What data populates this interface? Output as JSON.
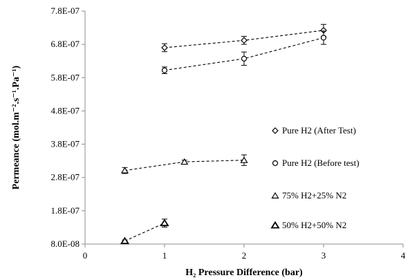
{
  "chart_data": {
    "type": "scatter",
    "xlabel": "H₂ Pressure Difference (bar)",
    "ylabel": "Permeance (mol.m⁻².s⁻¹.Pa⁻¹)",
    "xlim": [
      0,
      4
    ],
    "ylim": [
      8e-08,
      7.8e-07
    ],
    "x_ticks": [
      0,
      1,
      2,
      3,
      4
    ],
    "y_ticks": [
      8e-08,
      1.8e-07,
      2.8e-07,
      3.8e-07,
      4.8e-07,
      5.8e-07,
      6.8e-07,
      7.8e-07
    ],
    "y_tick_labels": [
      "8.0E-08",
      "1.8E-07",
      "2.8E-07",
      "3.8E-07",
      "4.8E-07",
      "5.8E-07",
      "6.8E-07",
      "7.8E-07"
    ],
    "grid": false,
    "legend_position": "right",
    "series": [
      {
        "name": "Pure H2 (After Test)",
        "marker": "diamond",
        "x": [
          1,
          2,
          3
        ],
        "y": [
          6.7e-07,
          6.92e-07,
          7.22e-07
        ],
        "err": [
          1.2e-08,
          1.2e-08,
          1.8e-08
        ]
      },
      {
        "name": "Pure H2 (Before test)",
        "marker": "circle",
        "x": [
          1,
          2,
          3
        ],
        "y": [
          6.02e-07,
          6.37e-07,
          7e-07
        ],
        "err": [
          1e-08,
          2e-08,
          2e-08
        ]
      },
      {
        "name": "75% H2+25% N2",
        "marker": "triangle",
        "x": [
          0.5,
          1.25,
          2
        ],
        "y": [
          3.01e-07,
          3.27e-07,
          3.32e-07
        ],
        "err": [
          9e-09,
          5e-09,
          1.6e-08
        ]
      },
      {
        "name": "50% H2+50% N2",
        "marker": "triangle-bold",
        "x": [
          0.5,
          1
        ],
        "y": [
          8.9e-08,
          1.43e-07
        ],
        "err": [
          3e-09,
          1.2e-08
        ]
      }
    ]
  }
}
